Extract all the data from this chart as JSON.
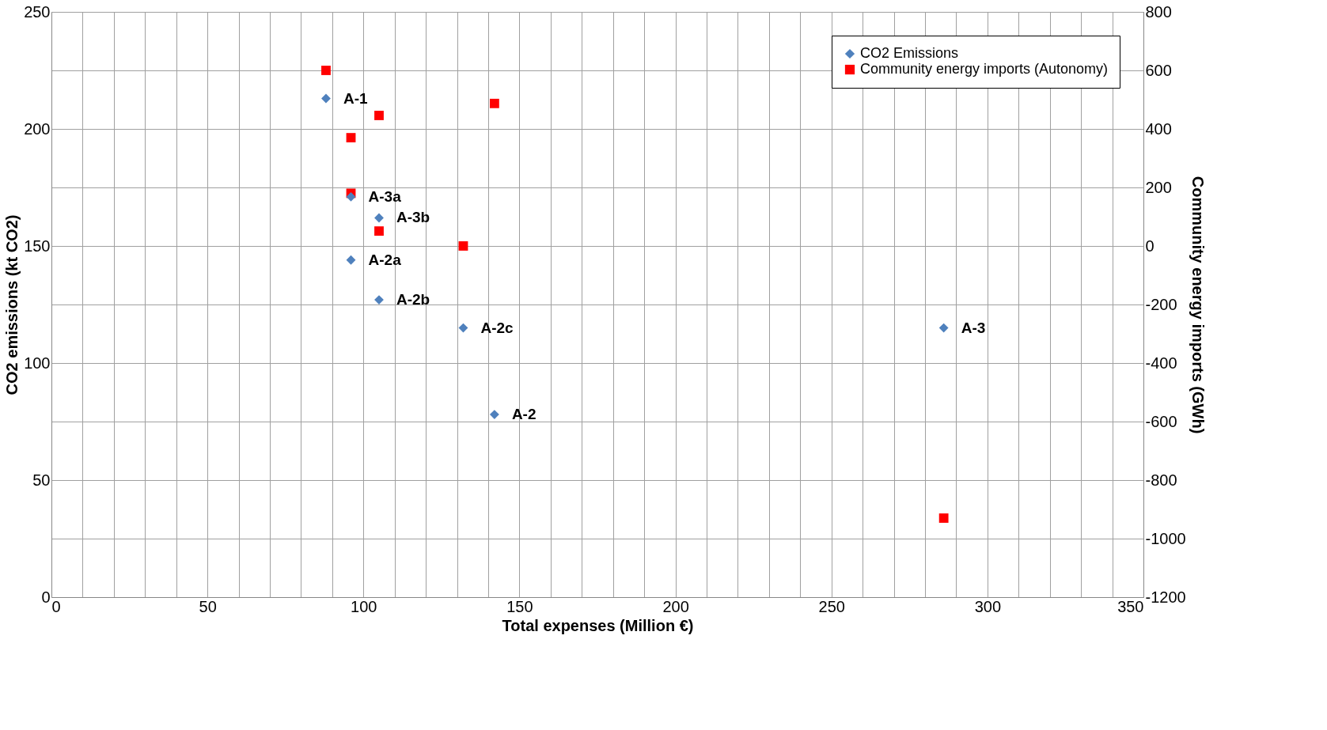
{
  "chart_data": {
    "type": "scatter",
    "xlabel": "Total expenses (Million €)",
    "ylabel": "CO2 emissions (kt CO2)",
    "y2label": "Community energy imports (GWh)",
    "xlim": [
      0,
      350
    ],
    "xticks": [
      0,
      {
        "value": 10,
        "label": null
      },
      {
        "value": 20,
        "label": null
      },
      {
        "value": 30,
        "label": null
      },
      {
        "value": 40,
        "label": null
      },
      50,
      {
        "value": 60,
        "label": null
      },
      {
        "value": 70,
        "label": null
      },
      {
        "value": 80,
        "label": null
      },
      {
        "value": 90,
        "label": null
      },
      100,
      {
        "value": 110,
        "label": null
      },
      {
        "value": 120,
        "label": null
      },
      {
        "value": 130,
        "label": null
      },
      {
        "value": 140,
        "label": null
      },
      150,
      {
        "value": 160,
        "label": null
      },
      {
        "value": 170,
        "label": null
      },
      {
        "value": 180,
        "label": null
      },
      {
        "value": 190,
        "label": null
      },
      200,
      {
        "value": 210,
        "label": null
      },
      {
        "value": 220,
        "label": null
      },
      {
        "value": 230,
        "label": null
      },
      {
        "value": 240,
        "label": null
      },
      250,
      {
        "value": 260,
        "label": null
      },
      {
        "value": 270,
        "label": null
      },
      {
        "value": 280,
        "label": null
      },
      {
        "value": 290,
        "label": null
      },
      300,
      {
        "value": 310,
        "label": null
      },
      {
        "value": 320,
        "label": null
      },
      {
        "value": 330,
        "label": null
      },
      {
        "value": 340,
        "label": null
      },
      350
    ],
    "ylim": [
      0,
      250
    ],
    "yticks": [
      0,
      {
        "value": 25,
        "label": null
      },
      50,
      {
        "value": 75,
        "label": null
      },
      100,
      {
        "value": 125,
        "label": null
      },
      150,
      {
        "value": 175,
        "label": null
      },
      200,
      {
        "value": 225,
        "label": null
      },
      250
    ],
    "y2lim": [
      -1200,
      800
    ],
    "y2ticks": [
      -1200,
      -1000,
      -800,
      -600,
      -400,
      -200,
      0,
      200,
      400,
      600,
      800
    ],
    "grid": true,
    "legend": "top right",
    "series": [
      {
        "name": "CO2 Emissions",
        "color": "#4f81bd",
        "marker": "diamond",
        "x": [
          88,
          96,
          96,
          105,
          105,
          132,
          142,
          286
        ],
        "values": [
          213,
          171,
          144,
          162,
          127,
          115,
          78,
          115
        ]
      },
      {
        "name": "Community energy imports (Autonomy)",
        "color": "#ff0000",
        "marker": "square",
        "axis": "y2",
        "x": [
          88,
          96,
          105,
          142,
          96,
          105,
          132,
          286
        ],
        "values": [
          600,
          370,
          446,
          487,
          180,
          51,
          0,
          -930
        ]
      }
    ],
    "annotations": [
      {
        "text": "A-1",
        "x": 88,
        "y": 213
      },
      {
        "text": "A-2b",
        "x": 105,
        "y": 127
      },
      {
        "text": "A-2a",
        "x": 96,
        "y": 144
      },
      {
        "text": "A-3b",
        "x": 105,
        "y": 162
      },
      {
        "text": "A-3a",
        "x": 96,
        "y": 171
      },
      {
        "text": "A-2c",
        "x": 132,
        "y": 115
      },
      {
        "text": "A-2",
        "x": 142,
        "y": 78
      },
      {
        "text": "A-3",
        "x": 286,
        "y": 115
      }
    ]
  }
}
